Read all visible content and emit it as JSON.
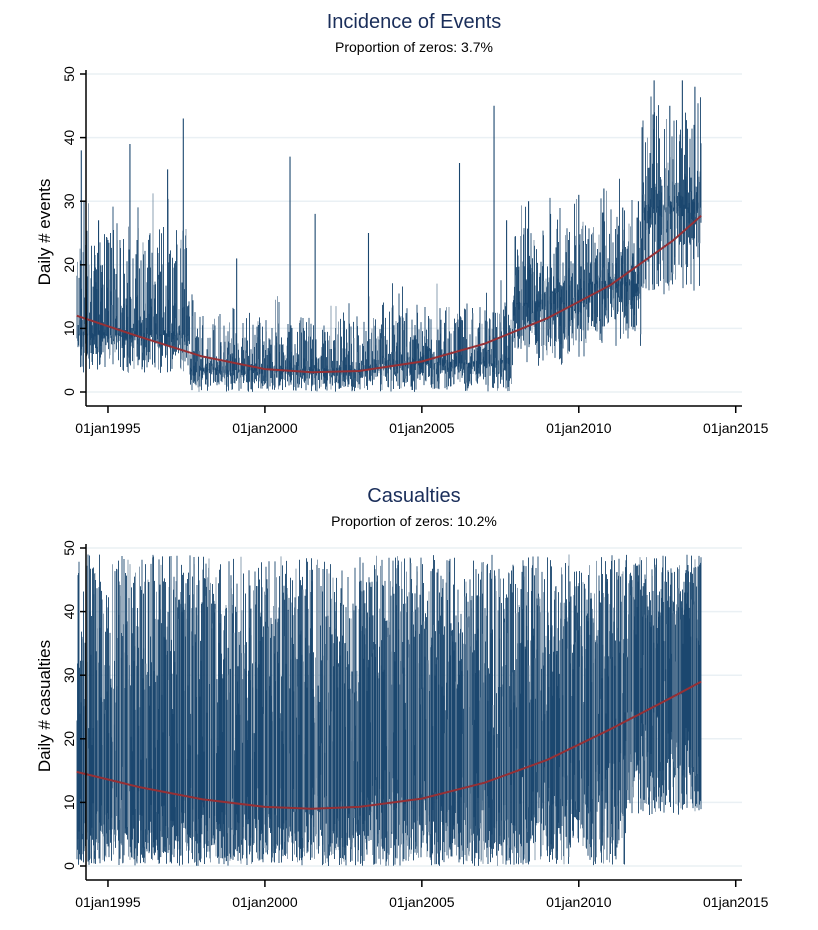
{
  "chart_data": [
    {
      "type": "line",
      "title": "Incidence of Events",
      "subtitle": "Proportion of zeros: 3.7%",
      "xlabel": "",
      "ylabel": "Daily # events",
      "ylim": [
        0,
        50
      ],
      "yticks": [
        0,
        10,
        20,
        30,
        40,
        50
      ],
      "ytick_labels": [
        "0",
        "10",
        "20",
        "30",
        "40",
        "50"
      ],
      "xlim": [
        1994.3,
        2015.2
      ],
      "xticks": [
        1995,
        2000,
        2005,
        2010,
        2015
      ],
      "xtick_labels": [
        "01jan1995",
        "01jan2000",
        "01jan2005",
        "01jan2010",
        "01jan2015"
      ],
      "grid": true,
      "legend": "none",
      "data_range_years": [
        1994.0,
        2013.9
      ],
      "series": [
        {
          "name": "Daily # events",
          "color": "#1a466e",
          "style": "spike",
          "segments": [
            {
              "from": 1994.0,
              "to": 1997.6,
              "mean": 9,
              "low": 3,
              "high": 26,
              "peaks": [
                [
                  1994.15,
                  38
                ],
                [
                  1994.7,
                  27
                ],
                [
                  1995.7,
                  39
                ],
                [
                  1996.9,
                  35
                ],
                [
                  1997.4,
                  43
                ]
              ]
            },
            {
              "from": 1997.6,
              "to": 2003.5,
              "mean": 3.5,
              "low": 0,
              "high": 12,
              "peaks": [
                [
                  1999.1,
                  21
                ],
                [
                  2000.8,
                  37
                ],
                [
                  2001.6,
                  28
                ],
                [
                  2003.3,
                  25
                ]
              ]
            },
            {
              "from": 2003.5,
              "to": 2007.9,
              "mean": 4.5,
              "low": 0,
              "high": 14,
              "peaks": [
                [
                  2006.2,
                  36
                ],
                [
                  2007.3,
                  45
                ],
                [
                  2007.7,
                  27
                ]
              ]
            },
            {
              "from": 2007.9,
              "to": 2010.3,
              "mean": 14,
              "low": 4,
              "high": 26,
              "peaks": [
                [
                  2008.4,
                  30
                ],
                [
                  2009.1,
                  28
                ],
                [
                  2010.0,
                  31
                ]
              ]
            },
            {
              "from": 2010.3,
              "to": 2012.0,
              "mean": 17,
              "low": 7,
              "high": 29,
              "peaks": [
                [
                  2010.8,
                  32
                ],
                [
                  2011.4,
                  29
                ],
                [
                  2011.9,
                  30
                ]
              ]
            },
            {
              "from": 2012.0,
              "to": 2013.9,
              "mean": 29,
              "low": 15,
              "high": 44,
              "peaks": [
                [
                  2012.4,
                  49
                ],
                [
                  2012.9,
                  45
                ],
                [
                  2013.3,
                  49
                ],
                [
                  2013.7,
                  48
                ]
              ]
            }
          ]
        },
        {
          "name": "Quadratic trend",
          "color": "#953035",
          "style": "line",
          "x": [
            1994.0,
            1996.0,
            1998.0,
            2000.0,
            2001.5,
            2003.0,
            2005.0,
            2007.0,
            2009.0,
            2011.0,
            2013.0,
            2013.9
          ],
          "y": [
            12.0,
            8.7,
            5.6,
            3.6,
            3.1,
            3.3,
            4.8,
            7.6,
            11.6,
            16.8,
            23.8,
            27.7
          ]
        }
      ]
    },
    {
      "type": "line",
      "title": "Casualties",
      "subtitle": "Proportion of zeros: 10.2%",
      "xlabel": "",
      "ylabel": "Daily # casualties",
      "ylim": [
        0,
        50
      ],
      "yticks": [
        0,
        10,
        20,
        30,
        40,
        50
      ],
      "ytick_labels": [
        "0",
        "10",
        "20",
        "30",
        "40",
        "50"
      ],
      "xlim": [
        1994.3,
        2015.2
      ],
      "xticks": [
        1995,
        2000,
        2005,
        2010,
        2015
      ],
      "xtick_labels": [
        "01jan1995",
        "01jan2000",
        "01jan2005",
        "01jan2010",
        "01jan2015"
      ],
      "grid": true,
      "legend": "none",
      "data_range_years": [
        1994.0,
        2013.9
      ],
      "series": [
        {
          "name": "Daily # casualties",
          "color": "#1a466e",
          "style": "spike",
          "segments": [
            {
              "from": 1994.0,
              "to": 1997.6,
              "mean": 14,
              "low": 0,
              "high": 49
            },
            {
              "from": 1997.6,
              "to": 2003.5,
              "mean": 15,
              "low": 0,
              "high": 49
            },
            {
              "from": 2003.5,
              "to": 2008.0,
              "mean": 17,
              "low": 0,
              "high": 49
            },
            {
              "from": 2008.0,
              "to": 2011.5,
              "mean": 22,
              "low": 0,
              "high": 49
            },
            {
              "from": 2011.5,
              "to": 2013.9,
              "mean": 30,
              "low": 8,
              "high": 49
            }
          ]
        },
        {
          "name": "Quadratic trend",
          "color": "#953035",
          "style": "line",
          "x": [
            1994.0,
            1996.0,
            1998.0,
            2000.0,
            2001.5,
            2003.0,
            2005.0,
            2007.0,
            2009.0,
            2011.0,
            2013.0,
            2013.9
          ],
          "y": [
            14.8,
            12.4,
            10.5,
            9.3,
            9.0,
            9.3,
            10.6,
            13.1,
            16.7,
            21.5,
            26.6,
            29.0
          ]
        }
      ]
    }
  ]
}
